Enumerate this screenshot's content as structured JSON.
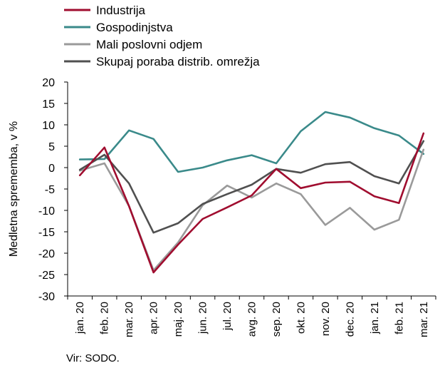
{
  "chart_data": {
    "type": "line",
    "categories": [
      "jan. 20",
      "feb. 20",
      "mar. 20",
      "apr. 20",
      "maj. 20",
      "jun. 20",
      "jul. 20",
      "avg. 20",
      "sep. 20",
      "okt. 20",
      "nov. 20",
      "dec. 20",
      "jan. 21",
      "feb. 21",
      "mar. 21"
    ],
    "series": [
      {
        "name": "Industrija",
        "color": "#a00d2f",
        "values": [
          -1.8,
          4.7,
          -9.0,
          -24.5,
          -18.0,
          -12.0,
          -9.3,
          -6.5,
          -0.3,
          -4.8,
          -3.5,
          -3.3,
          -6.7,
          -8.3,
          8.0
        ]
      },
      {
        "name": "Gospodinjstva",
        "color": "#3a8a8a",
        "values": [
          1.9,
          2.0,
          8.7,
          6.7,
          -1.0,
          0.0,
          1.7,
          2.9,
          1.0,
          8.5,
          13.0,
          11.7,
          9.2,
          7.5,
          3.2
        ]
      },
      {
        "name": "Mali poslovni odjem",
        "color": "#9a9a9a",
        "values": [
          -0.7,
          1.0,
          -9.0,
          -24.0,
          -17.5,
          -8.8,
          -4.2,
          -7.0,
          -3.7,
          -6.2,
          -13.4,
          -9.4,
          -14.5,
          -12.2,
          4.2
        ]
      },
      {
        "name": "Skupaj poraba distrib. omrežja",
        "color": "#505050",
        "values": [
          -0.5,
          3.0,
          -3.7,
          -15.2,
          -13.0,
          -8.5,
          -6.2,
          -4.0,
          -0.3,
          -1.2,
          0.8,
          1.3,
          -2.0,
          -3.7,
          6.2
        ]
      }
    ],
    "ylabel": "Medletna sprememba, v %",
    "ylim": [
      -30,
      20
    ],
    "yticks": [
      20,
      15,
      10,
      5,
      0,
      -5,
      -10,
      -15,
      -20,
      -25,
      -30
    ],
    "legend": "top-left",
    "grid": false
  },
  "source": "Vir: SODO."
}
